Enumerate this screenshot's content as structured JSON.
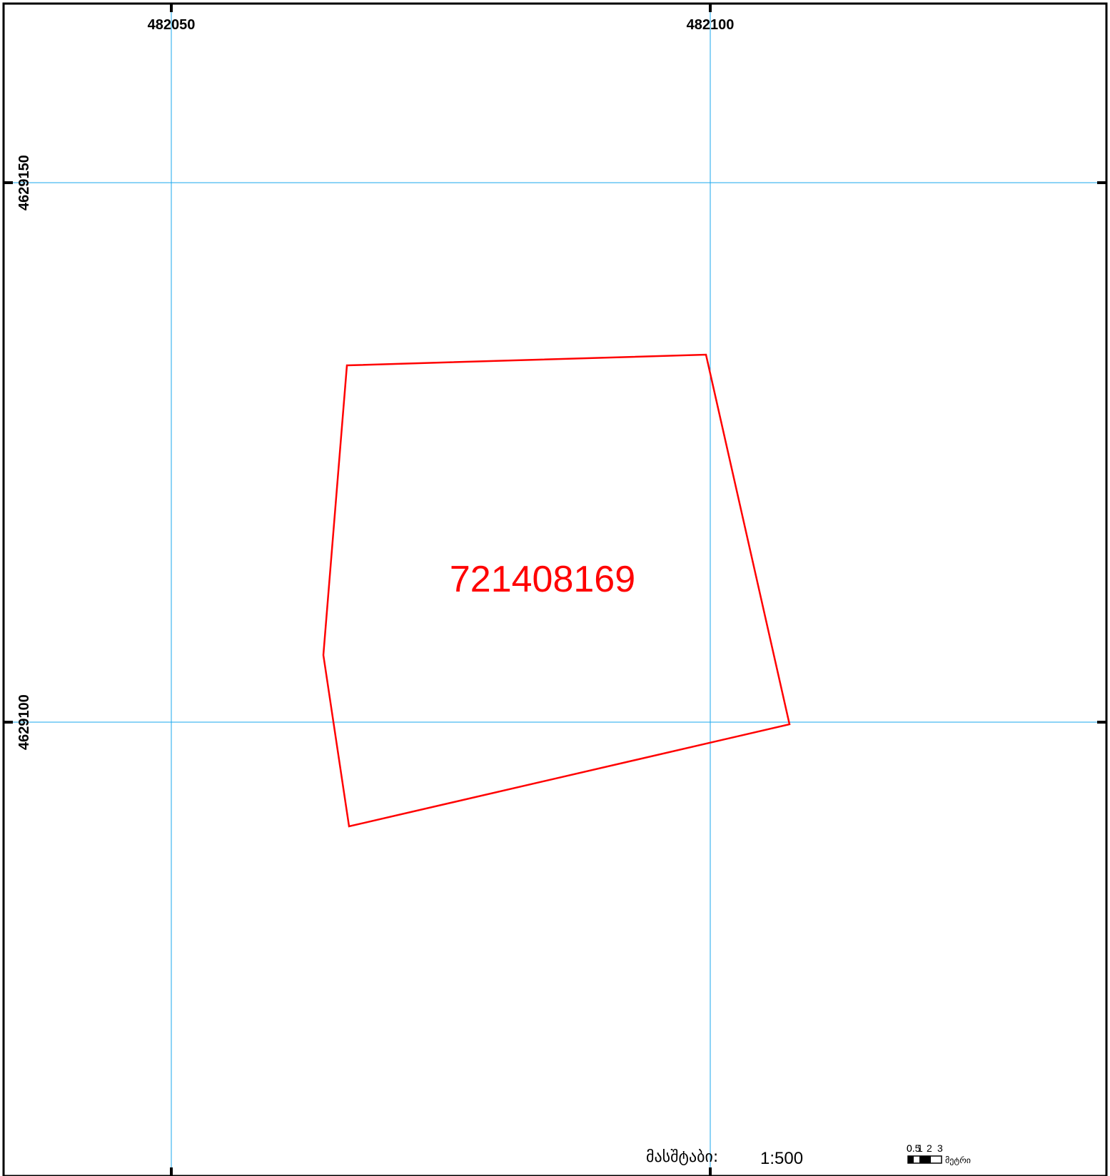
{
  "map": {
    "grid_color": "#1AA7EC",
    "parcel_color": "#FF0000",
    "frame_color": "#000000",
    "easting_labels": [
      "482050",
      "482100"
    ],
    "northing_labels": [
      "4629150",
      "4629100"
    ],
    "parcel": {
      "id": "721408169"
    },
    "scale": {
      "title": "მასშტაბი:",
      "ratio": "1:500"
    },
    "scalebar": {
      "ticks": [
        "0",
        "0.5",
        "1",
        "2",
        "3"
      ],
      "unit": "მეტრი"
    }
  }
}
